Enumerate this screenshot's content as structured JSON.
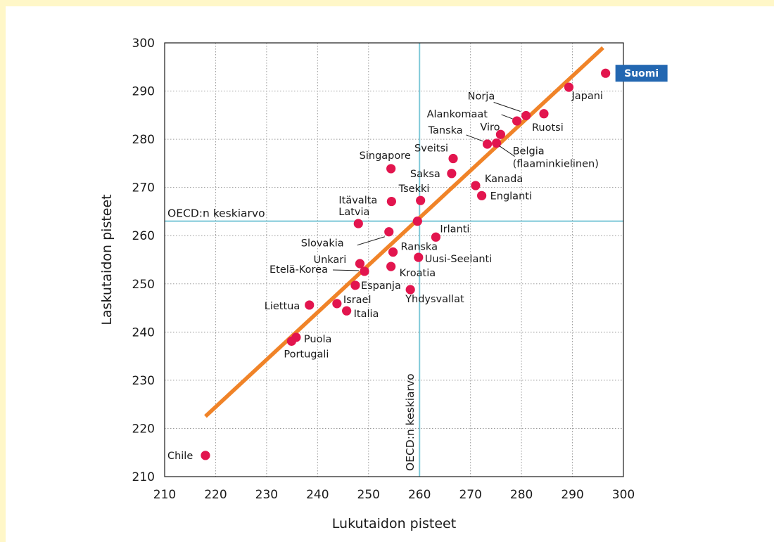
{
  "colors": {
    "page_background": "#fff7c8",
    "plot_background": "#ffffff",
    "point": "#e2154e",
    "trend_line": "#f08328",
    "reference_line": "#7ec8d8",
    "highlight_box": "#2367b1",
    "grid": "#9a9a9a"
  },
  "chart_data": {
    "type": "scatter",
    "xlabel": "Lukutaidon pisteet",
    "ylabel": "Laskutaidon pisteet",
    "xlim": [
      210,
      300
    ],
    "ylim": [
      210,
      300
    ],
    "xticks": [
      210,
      220,
      230,
      240,
      250,
      260,
      270,
      280,
      290,
      300
    ],
    "yticks": [
      210,
      220,
      230,
      240,
      250,
      260,
      270,
      280,
      290,
      300
    ],
    "grid": true,
    "reference_lines": {
      "x": {
        "value": 260,
        "label": "OECD:n keskiarvo"
      },
      "y": {
        "value": 263,
        "label": "OECD:n keskiarvo"
      }
    },
    "trend_line": {
      "from": [
        218,
        222.5
      ],
      "to": [
        296,
        299
      ]
    },
    "highlight": "Suomi",
    "points": [
      {
        "name": "Suomi",
        "x": 296.5,
        "y": 293.7
      },
      {
        "name": "Japani",
        "x": 289.3,
        "y": 290.8
      },
      {
        "name": "Norja",
        "x": 280.9,
        "y": 284.9
      },
      {
        "name": "Alankomaat",
        "x": 279.1,
        "y": 283.8
      },
      {
        "name": "Ruotsi",
        "x": 284.4,
        "y": 285.3
      },
      {
        "name": "Viro",
        "x": 275.9,
        "y": 281.0
      },
      {
        "name": "Tanska",
        "x": 273.3,
        "y": 279.0
      },
      {
        "name": "Belgia (flaaminkielinen)",
        "x": 275.1,
        "y": 279.2
      },
      {
        "name": "Sveitsi",
        "x": 266.6,
        "y": 276.0
      },
      {
        "name": "Singapore",
        "x": 254.4,
        "y": 273.9
      },
      {
        "name": "Saksa",
        "x": 266.3,
        "y": 272.9
      },
      {
        "name": "Kanada",
        "x": 271.0,
        "y": 270.4
      },
      {
        "name": "Tsekki",
        "x": 260.2,
        "y": 267.3
      },
      {
        "name": "Englanti",
        "x": 272.2,
        "y": 268.3
      },
      {
        "name": "Itävalta",
        "x": 254.5,
        "y": 267.1
      },
      {
        "name": "Latvia",
        "x": 248.0,
        "y": 262.5
      },
      {
        "name": "OECD:n keskiarvo",
        "x": 259.6,
        "y": 263.0
      },
      {
        "name": "Irlanti",
        "x": 263.2,
        "y": 259.7
      },
      {
        "name": "Slovakia",
        "x": 254.0,
        "y": 260.8
      },
      {
        "name": "Ranska",
        "x": 254.8,
        "y": 256.6
      },
      {
        "name": "Uusi-Seelanti",
        "x": 259.8,
        "y": 255.5
      },
      {
        "name": "Unkari",
        "x": 248.3,
        "y": 254.2
      },
      {
        "name": "Kroatia",
        "x": 254.4,
        "y": 253.6
      },
      {
        "name": "Etelä-Korea",
        "x": 249.2,
        "y": 252.6
      },
      {
        "name": "Espanja",
        "x": 247.4,
        "y": 249.7
      },
      {
        "name": "Yhdysvallat",
        "x": 258.2,
        "y": 248.8
      },
      {
        "name": "Liettua",
        "x": 238.4,
        "y": 245.6
      },
      {
        "name": "Israel",
        "x": 243.8,
        "y": 245.9
      },
      {
        "name": "Italia",
        "x": 245.7,
        "y": 244.4
      },
      {
        "name": "Puola",
        "x": 235.8,
        "y": 238.9
      },
      {
        "name": "Portugali",
        "x": 234.9,
        "y": 238.1
      },
      {
        "name": "Chile",
        "x": 218.0,
        "y": 214.4
      }
    ]
  }
}
